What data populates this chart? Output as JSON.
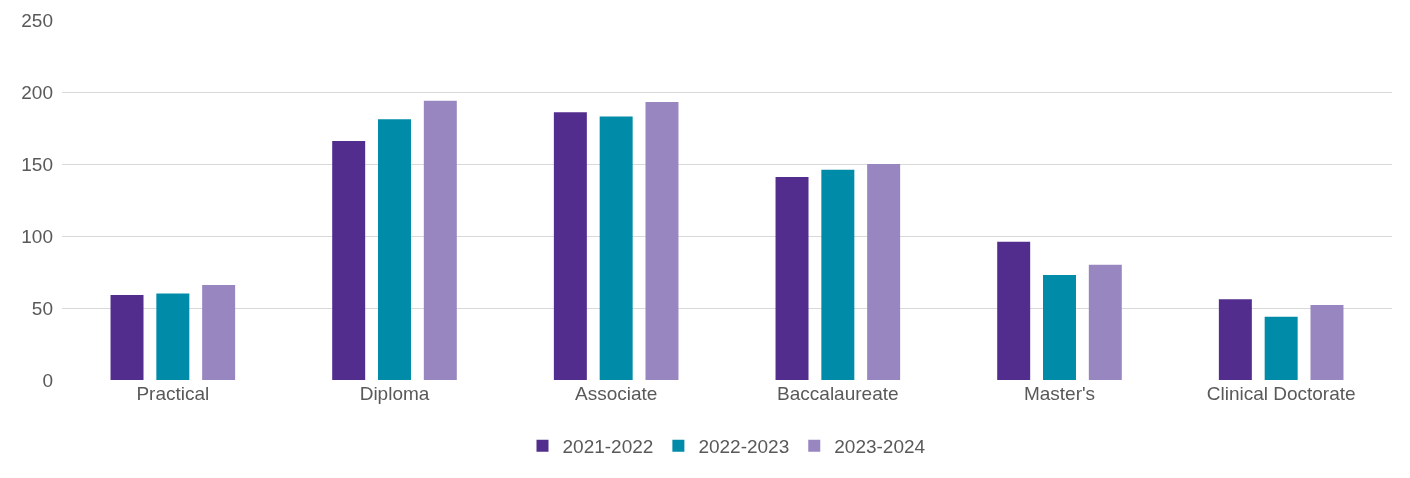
{
  "chart_data": {
    "type": "bar",
    "categories": [
      "Practical",
      "Diploma",
      "Associate",
      "Baccalaureate",
      "Master's",
      "Clinical Doctorate"
    ],
    "series": [
      {
        "name": "2021-2022",
        "color": "#522d8e",
        "values": [
          59,
          166,
          186,
          141,
          96,
          56
        ]
      },
      {
        "name": "2022-2023",
        "color": "#008ca8",
        "values": [
          60,
          181,
          183,
          146,
          73,
          44
        ]
      },
      {
        "name": "2023-2024",
        "color": "#9886c0",
        "values": [
          66,
          194,
          193,
          150,
          80,
          52
        ]
      }
    ],
    "ylim": [
      0,
      250
    ],
    "yticks": [
      0,
      50,
      100,
      150,
      200,
      250
    ],
    "grid": "y",
    "legend": "bottom"
  }
}
